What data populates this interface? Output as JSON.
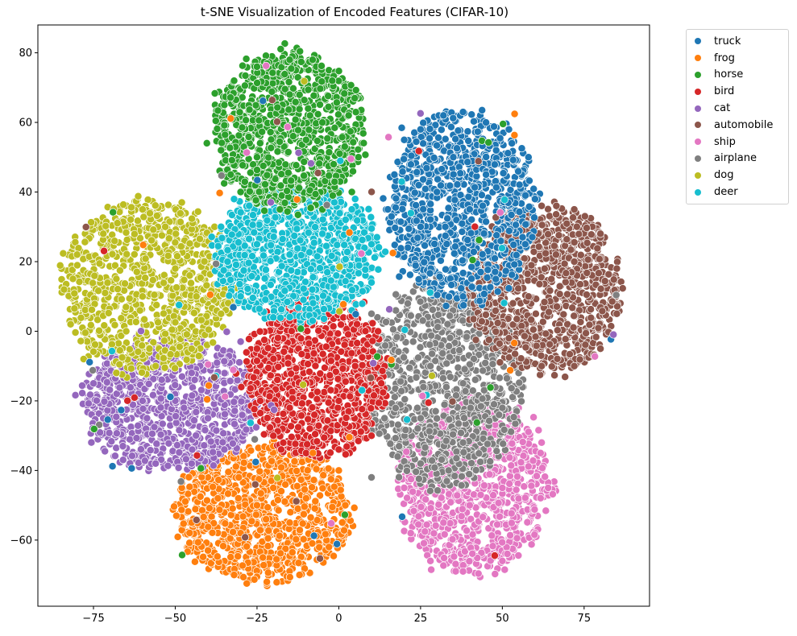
{
  "chart_data": {
    "type": "scatter",
    "title": "t-SNE Visualization of Encoded Features (CIFAR-10)",
    "xlabel": "",
    "ylabel": "",
    "xlim": [
      -92,
      95
    ],
    "ylim": [
      -79,
      88
    ],
    "xticks": [
      -75,
      -50,
      -25,
      0,
      25,
      50,
      75
    ],
    "yticks": [
      -60,
      -40,
      -20,
      0,
      20,
      40,
      60,
      80
    ],
    "legend_position": "outside-top-right",
    "grid": false,
    "series": [
      {
        "name": "truck",
        "color": "#1f77b4",
        "cluster": {
          "center": [
            36,
            38
          ],
          "spread": [
            13,
            15
          ],
          "extent": {
            "x": [
              15,
              60
            ],
            "y": [
              8,
              63
            ]
          }
        },
        "points": [
          [
            20,
            55
          ],
          [
            25,
            58
          ],
          [
            32,
            62
          ],
          [
            38,
            63
          ],
          [
            45,
            60
          ],
          [
            52,
            58
          ],
          [
            58,
            50
          ],
          [
            60,
            38
          ],
          [
            57,
            25
          ],
          [
            48,
            15
          ],
          [
            38,
            10
          ],
          [
            28,
            12
          ],
          [
            18,
            22
          ],
          [
            15,
            35
          ],
          [
            17,
            45
          ],
          [
            30,
            40
          ],
          [
            40,
            35
          ],
          [
            45,
            45
          ],
          [
            35,
            50
          ],
          [
            25,
            30
          ]
        ]
      },
      {
        "name": "frog",
        "color": "#ff7f0e",
        "cluster": {
          "center": [
            -22,
            -53
          ],
          "spread": [
            11,
            9
          ],
          "extent": {
            "x": [
              -50,
              4
            ],
            "y": [
              -72,
              -33
            ]
          }
        },
        "points": [
          [
            -48,
            -45
          ],
          [
            -45,
            -55
          ],
          [
            -40,
            -63
          ],
          [
            -32,
            -70
          ],
          [
            -22,
            -72
          ],
          [
            -12,
            -70
          ],
          [
            -3,
            -62
          ],
          [
            2,
            -50
          ],
          [
            0,
            -40
          ],
          [
            -8,
            -35
          ],
          [
            -20,
            -33
          ],
          [
            -32,
            -35
          ],
          [
            -42,
            -40
          ],
          [
            -25,
            -50
          ],
          [
            -15,
            -55
          ],
          [
            -30,
            -58
          ],
          [
            -20,
            -45
          ],
          [
            -10,
            -48
          ]
        ]
      },
      {
        "name": "horse",
        "color": "#2ca02c",
        "cluster": {
          "center": [
            -16,
            56
          ],
          "spread": [
            11,
            12
          ],
          "extent": {
            "x": [
              -38,
              8
            ],
            "y": [
              35,
              80
            ]
          }
        },
        "points": [
          [
            -35,
            65
          ],
          [
            -32,
            72
          ],
          [
            -25,
            76
          ],
          [
            -15,
            78
          ],
          [
            -8,
            78
          ],
          [
            -2,
            72
          ],
          [
            3,
            62
          ],
          [
            6,
            50
          ],
          [
            4,
            40
          ],
          [
            -5,
            35
          ],
          [
            -18,
            35
          ],
          [
            -30,
            40
          ],
          [
            -36,
            52
          ],
          [
            -20,
            60
          ],
          [
            -10,
            55
          ],
          [
            -15,
            68
          ],
          [
            -25,
            50
          ],
          [
            -5,
            60
          ]
        ]
      },
      {
        "name": "bird",
        "color": "#d62728",
        "cluster": {
          "center": [
            -6,
            -13
          ],
          "spread": [
            9,
            10
          ],
          "extent": {
            "x": [
              -28,
              14
            ],
            "y": [
              -36,
              10
            ]
          }
        },
        "points": [
          [
            -25,
            -5
          ],
          [
            -24,
            -20
          ],
          [
            -20,
            -30
          ],
          [
            -10,
            -35
          ],
          [
            0,
            -34
          ],
          [
            10,
            -30
          ],
          [
            13,
            -15
          ],
          [
            12,
            0
          ],
          [
            5,
            8
          ],
          [
            -5,
            7
          ],
          [
            -15,
            3
          ],
          [
            -22,
            4
          ],
          [
            -10,
            -15
          ],
          [
            0,
            -20
          ],
          [
            -15,
            -22
          ],
          [
            5,
            -10
          ]
        ]
      },
      {
        "name": "cat",
        "color": "#9467bd",
        "cluster": {
          "center": [
            -52,
            -21
          ],
          "spread": [
            11,
            8
          ],
          "extent": {
            "x": [
              -78,
              -24
            ],
            "y": [
              -40,
              -2
            ]
          }
        },
        "points": [
          [
            -75,
            -15
          ],
          [
            -72,
            -25
          ],
          [
            -66,
            -33
          ],
          [
            -56,
            -38
          ],
          [
            -45,
            -38
          ],
          [
            -35,
            -34
          ],
          [
            -27,
            -25
          ],
          [
            -25,
            -12
          ],
          [
            -30,
            -3
          ],
          [
            -42,
            -2
          ],
          [
            -55,
            -5
          ],
          [
            -68,
            -8
          ],
          [
            -50,
            -20
          ],
          [
            -40,
            -25
          ],
          [
            -60,
            -20
          ],
          [
            -45,
            -12
          ]
        ]
      },
      {
        "name": "automobile",
        "color": "#8c564b",
        "cluster": {
          "center": [
            66,
            17
          ],
          "spread": [
            11,
            10
          ],
          "extent": {
            "x": [
              40,
              86
            ],
            "y": [
              -12,
              36
            ]
          }
        },
        "points": [
          [
            42,
            20
          ],
          [
            45,
            8
          ],
          [
            52,
            -2
          ],
          [
            62,
            -10
          ],
          [
            72,
            -10
          ],
          [
            80,
            -5
          ],
          [
            85,
            5
          ],
          [
            85,
            18
          ],
          [
            80,
            28
          ],
          [
            72,
            35
          ],
          [
            62,
            36
          ],
          [
            52,
            32
          ],
          [
            45,
            28
          ],
          [
            65,
            15
          ],
          [
            72,
            20
          ],
          [
            58,
            10
          ]
        ]
      },
      {
        "name": "ship",
        "color": "#e377c2",
        "cluster": {
          "center": [
            38,
            -52
          ],
          "spread": [
            11,
            9
          ],
          "extent": {
            "x": [
              18,
              65
            ],
            "y": [
              -69,
              -20
            ]
          }
        },
        "points": [
          [
            20,
            -45
          ],
          [
            22,
            -58
          ],
          [
            28,
            -66
          ],
          [
            38,
            -69
          ],
          [
            50,
            -66
          ],
          [
            60,
            -58
          ],
          [
            64,
            -45
          ],
          [
            62,
            -32
          ],
          [
            55,
            -22
          ],
          [
            45,
            -28
          ],
          [
            35,
            -35
          ],
          [
            25,
            -38
          ],
          [
            40,
            -50
          ],
          [
            50,
            -45
          ],
          [
            32,
            -55
          ]
        ]
      },
      {
        "name": "airplane",
        "color": "#7f7f7f",
        "cluster": {
          "center": [
            27,
            -9
          ],
          "spread": [
            11,
            11
          ],
          "extent": {
            "x": [
              8,
              56
            ],
            "y": [
              -44,
              14
            ]
          }
        },
        "points": [
          [
            10,
            5
          ],
          [
            12,
            -10
          ],
          [
            14,
            -25
          ],
          [
            18,
            -36
          ],
          [
            10,
            -42
          ],
          [
            25,
            -38
          ],
          [
            38,
            -32
          ],
          [
            50,
            -22
          ],
          [
            55,
            -12
          ],
          [
            50,
            0
          ],
          [
            40,
            8
          ],
          [
            28,
            13
          ],
          [
            18,
            10
          ],
          [
            28,
            -10
          ],
          [
            38,
            -15
          ],
          [
            25,
            -25
          ]
        ]
      },
      {
        "name": "dog",
        "color": "#bcbd22",
        "cluster": {
          "center": [
            -60,
            9
          ],
          "spread": [
            12,
            10
          ],
          "extent": {
            "x": [
              -85,
              -32
            ],
            "y": [
              -12,
              38
            ]
          }
        },
        "points": [
          [
            -84,
            12
          ],
          [
            -82,
            2
          ],
          [
            -78,
            -8
          ],
          [
            -68,
            -12
          ],
          [
            -56,
            -10
          ],
          [
            -45,
            -5
          ],
          [
            -36,
            5
          ],
          [
            -34,
            18
          ],
          [
            -38,
            30
          ],
          [
            -48,
            37
          ],
          [
            -60,
            35
          ],
          [
            -72,
            28
          ],
          [
            -80,
            22
          ],
          [
            -60,
            10
          ],
          [
            -50,
            18
          ],
          [
            -65,
            0
          ]
        ]
      },
      {
        "name": "deer",
        "color": "#17becf",
        "cluster": {
          "center": [
            -14,
            23
          ],
          "spread": [
            11,
            8
          ],
          "extent": {
            "x": [
              -38,
              12
            ],
            "y": [
              3,
              42
            ]
          }
        },
        "points": [
          [
            -36,
            30
          ],
          [
            -34,
            20
          ],
          [
            -30,
            10
          ],
          [
            -20,
            4
          ],
          [
            -8,
            3
          ],
          [
            4,
            6
          ],
          [
            10,
            14
          ],
          [
            10,
            25
          ],
          [
            4,
            35
          ],
          [
            -8,
            40
          ],
          [
            -22,
            41
          ],
          [
            -32,
            38
          ],
          [
            -15,
            22
          ],
          [
            -5,
            28
          ],
          [
            -25,
            25
          ],
          [
            0,
            18
          ]
        ]
      }
    ]
  }
}
